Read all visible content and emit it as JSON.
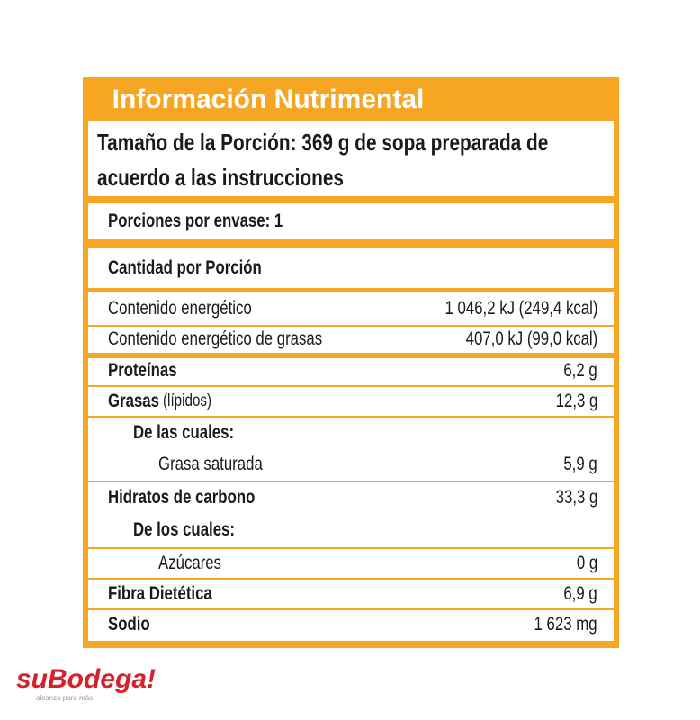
{
  "header": {
    "title": "Información Nutrimental"
  },
  "serving": {
    "lines": [
      "Tamaño de la Porción: 369 g de sopa preparada de",
      "acuerdo a las instrucciones"
    ]
  },
  "servings_per_container": "Porciones por envase: 1",
  "amount_per_serving": "Cantidad por Porción",
  "energy": [
    {
      "label": "Contenido energético",
      "value": "1 046,2 kJ (249,4 kcal)"
    },
    {
      "label": "Contenido energético de grasas",
      "value": "407,0 kJ  (99,0 kcal)"
    }
  ],
  "nutrients": [
    {
      "label": "Proteínas",
      "value": "6,2 g"
    },
    {
      "label": "Grasas",
      "note": "(lípidos)",
      "value": "12,3 g"
    },
    {
      "label": "De las cuales:"
    },
    {
      "label": "Grasa saturada",
      "value": "5,9 g"
    },
    {
      "label": "Hidratos de carbono",
      "value": "33,3 g"
    },
    {
      "label": "De los cuales:"
    },
    {
      "label": "Azúcares",
      "value": "0 g"
    },
    {
      "label": "Fibra Dietética",
      "value": "6,9 g"
    },
    {
      "label": "Sodio",
      "value": "1 623 mg"
    }
  ],
  "logo": {
    "brand": "suBodega!",
    "tagline": "alcanza para más"
  }
}
